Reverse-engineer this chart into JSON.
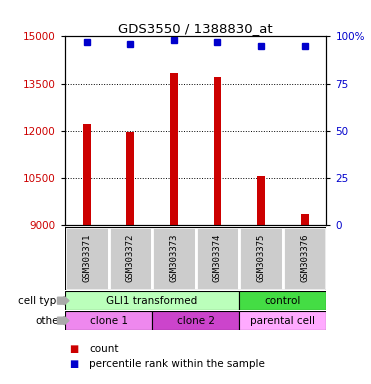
{
  "title": "GDS3550 / 1388830_at",
  "samples": [
    "GSM303371",
    "GSM303372",
    "GSM303373",
    "GSM303374",
    "GSM303375",
    "GSM303376"
  ],
  "counts": [
    12200,
    11950,
    13850,
    13700,
    10550,
    9350
  ],
  "percentile_ranks": [
    97,
    96,
    98,
    97,
    95,
    95
  ],
  "ymin": 9000,
  "ymax": 15000,
  "yticks": [
    9000,
    10500,
    12000,
    13500,
    15000
  ],
  "y2ticks": [
    0,
    25,
    50,
    75,
    100
  ],
  "y2tick_labels": [
    "0",
    "25",
    "50",
    "75",
    "100%"
  ],
  "bar_color": "#cc0000",
  "dot_color": "#0000cc",
  "bar_width": 0.18,
  "cell_type_groups": [
    {
      "label": "GLI1 transformed",
      "start": 0,
      "end": 4,
      "color": "#bbffbb"
    },
    {
      "label": "control",
      "start": 4,
      "end": 6,
      "color": "#44dd44"
    }
  ],
  "other_groups": [
    {
      "label": "clone 1",
      "start": 0,
      "end": 2,
      "color": "#ee88ee"
    },
    {
      "label": "clone 2",
      "start": 2,
      "end": 4,
      "color": "#cc44cc"
    },
    {
      "label": "parental cell",
      "start": 4,
      "end": 6,
      "color": "#ffaaff"
    }
  ],
  "legend_count_label": "count",
  "legend_percentile_label": "percentile rank within the sample",
  "left_label": "cell type",
  "left_label2": "other",
  "tick_label_color_left": "#cc0000",
  "tick_label_color_right": "#0000cc",
  "bg_color": "#ffffff"
}
